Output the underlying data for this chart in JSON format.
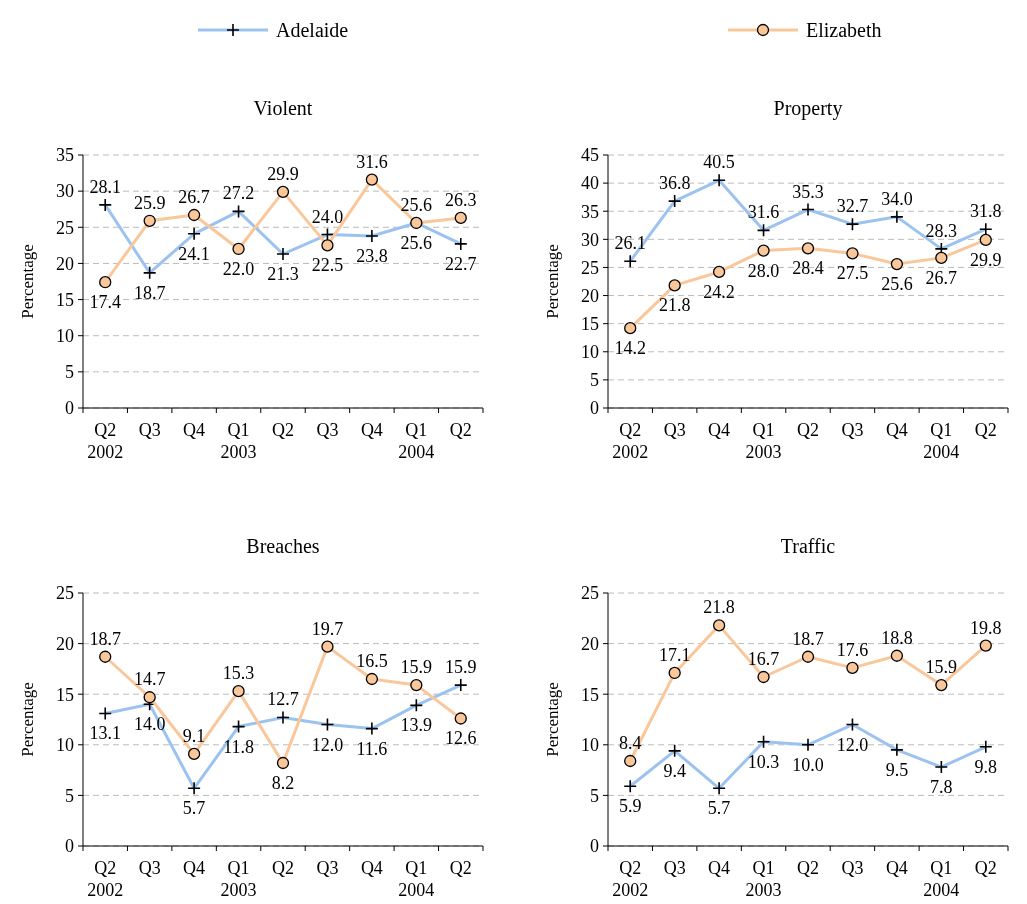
{
  "chart_data": [
    {
      "type": "line",
      "title": "Violent",
      "ylabel": "Percentage",
      "categories": [
        "Q2\n2002",
        "Q3",
        "Q4",
        "Q1\n2003",
        "Q2",
        "Q3",
        "Q4",
        "Q1\n2004",
        "Q2"
      ],
      "ylim": [
        0,
        35
      ],
      "yticks": [
        0,
        5,
        10,
        15,
        20,
        25,
        30,
        35
      ],
      "grid": "y",
      "legend": "top",
      "series": [
        {
          "name": "Adelaide",
          "color": "#9cc3f0",
          "marker": "cross",
          "values": [
            28.1,
            18.7,
            24.1,
            27.2,
            21.3,
            24.0,
            23.8,
            25.6,
            22.7
          ],
          "value_labels": [
            "28.1",
            "18.7",
            "24.1",
            "27.2",
            "21.3",
            "24.0",
            "23.8",
            "25.6",
            "22.7"
          ]
        },
        {
          "name": "Elizabeth",
          "color": "#f9c79a",
          "marker": "circle",
          "values": [
            17.4,
            25.9,
            26.7,
            22.0,
            29.9,
            22.5,
            31.6,
            25.6,
            26.3
          ],
          "value_labels": [
            "17.4",
            "25.9",
            "26.7",
            "22.0",
            "29.9",
            "22.5",
            "31.6",
            "25.6",
            "26.3"
          ]
        }
      ]
    },
    {
      "type": "line",
      "title": "Property",
      "ylabel": "Percentage",
      "categories": [
        "Q2\n2002",
        "Q3",
        "Q4",
        "Q1\n2003",
        "Q2",
        "Q3",
        "Q4",
        "Q1\n2004",
        "Q2"
      ],
      "ylim": [
        0,
        45
      ],
      "yticks": [
        0,
        5,
        10,
        15,
        20,
        25,
        30,
        35,
        40,
        45
      ],
      "grid": "y",
      "series": [
        {
          "color": "#9cc3f0",
          "marker": "cross",
          "values": [
            26.1,
            36.8,
            40.5,
            31.6,
            35.3,
            32.7,
            34.0,
            28.3,
            31.8
          ],
          "value_labels": [
            "26.1",
            "36.8",
            "40.5",
            "31.6",
            "35.3",
            "32.7",
            "34.0",
            "28.3",
            "31.8"
          ]
        },
        {
          "color": "#f9c79a",
          "marker": "circle",
          "values": [
            14.2,
            21.8,
            24.2,
            28.0,
            28.4,
            27.5,
            25.6,
            26.7,
            29.9
          ],
          "value_labels": [
            "14.2",
            "21.8",
            "24.2",
            "28.0",
            "28.4",
            "27.5",
            "25.6",
            "26.7",
            "29.9"
          ]
        }
      ]
    },
    {
      "type": "line",
      "title": "Breaches",
      "ylabel": "Percentage",
      "categories": [
        "Q2\n2002",
        "Q3",
        "Q4",
        "Q1\n2003",
        "Q2",
        "Q3",
        "Q4",
        "Q1\n2004",
        "Q2"
      ],
      "ylim": [
        0,
        25
      ],
      "yticks": [
        0,
        5,
        10,
        15,
        20,
        25
      ],
      "grid": "y",
      "series": [
        {
          "color": "#9cc3f0",
          "marker": "cross",
          "values": [
            13.1,
            14.0,
            5.7,
            11.8,
            12.7,
            12.0,
            11.6,
            13.9,
            15.9
          ],
          "value_labels": [
            "13.1",
            "14.0",
            "5.7",
            "11.8",
            "12.7",
            "12.0",
            "11.6",
            "13.9",
            "15.9"
          ]
        },
        {
          "color": "#f9c79a",
          "marker": "circle",
          "values": [
            18.7,
            14.7,
            9.1,
            15.3,
            8.2,
            19.7,
            16.5,
            15.9,
            12.6
          ],
          "value_labels": [
            "18.7",
            "14.7",
            "9.1",
            "15.3",
            "8.2",
            "19.7",
            "16.5",
            "15.9",
            "12.6"
          ]
        }
      ]
    },
    {
      "type": "line",
      "title": "Traffic",
      "ylabel": "Percentage",
      "categories": [
        "Q2\n2002",
        "Q3",
        "Q4",
        "Q1\n2003",
        "Q2",
        "Q3",
        "Q4",
        "Q1\n2004",
        "Q2"
      ],
      "ylim": [
        0,
        25
      ],
      "yticks": [
        0,
        5,
        10,
        15,
        20,
        25
      ],
      "grid": "y",
      "series": [
        {
          "color": "#9cc3f0",
          "marker": "cross",
          "values": [
            5.9,
            9.4,
            5.7,
            10.3,
            10.0,
            12.0,
            9.5,
            7.8,
            9.8
          ],
          "value_labels": [
            "5.9",
            "9.4",
            "5.7",
            "10.3",
            "10.0",
            "12.0",
            "9.5",
            "7.8",
            "9.8"
          ]
        },
        {
          "color": "#f9c79a",
          "marker": "circle",
          "values": [
            8.4,
            17.1,
            21.8,
            16.7,
            18.7,
            17.6,
            18.8,
            15.9,
            19.8
          ],
          "value_labels": [
            "8.4",
            "17.1",
            "21.8",
            "16.7",
            "18.7",
            "17.6",
            "18.8",
            "15.9",
            "19.8"
          ]
        }
      ]
    }
  ]
}
